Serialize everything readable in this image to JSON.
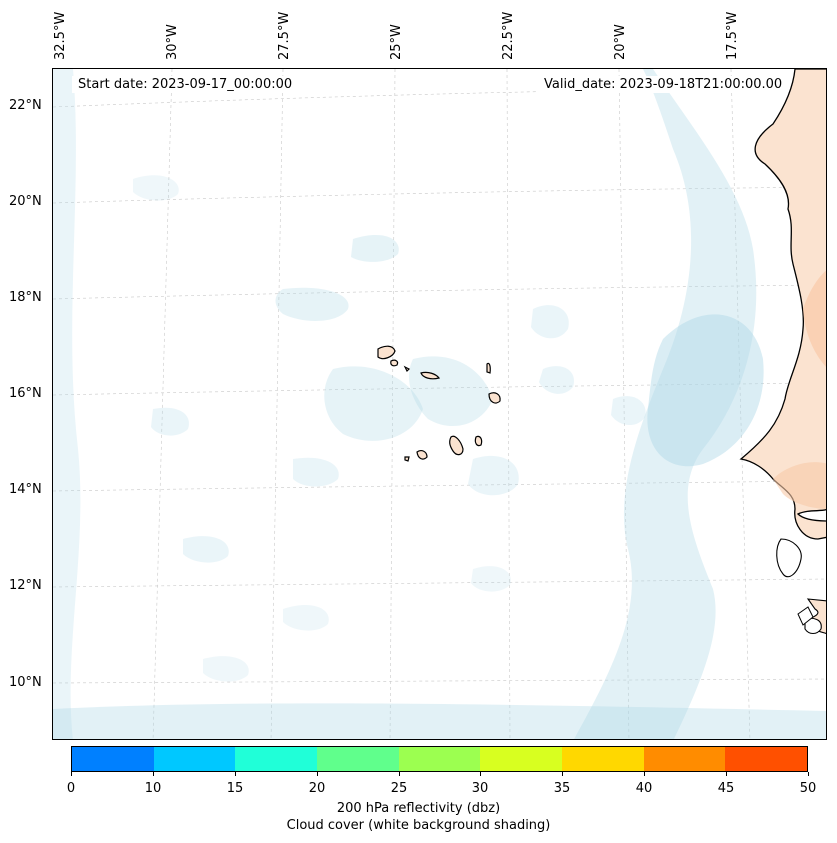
{
  "map": {
    "start_date": "Start date: 2023-09-17_00:00:00",
    "valid_date": "Valid_date: 2023-09-18T21:00:00.00",
    "lon_labels": [
      "32.5°W",
      "30°W",
      "27.5°W",
      "25°W",
      "22.5°W",
      "20°W",
      "17.5°W"
    ],
    "lat_labels": [
      "22°N",
      "20°N",
      "18°N",
      "16°N",
      "14°N",
      "12°N",
      "10°N"
    ],
    "cloud_color": "#add8e6",
    "land_color": "#f4a46a"
  },
  "colorbar": {
    "ticks": [
      "0",
      "10",
      "15",
      "20",
      "25",
      "30",
      "35",
      "40",
      "45",
      "50"
    ],
    "colors": [
      "#0080ff",
      "#00c8ff",
      "#20ffd8",
      "#60ff8c",
      "#9cff50",
      "#d8ff20",
      "#ffd800",
      "#ff8c00",
      "#ff5000"
    ],
    "label_line1": "200 hPa reflectivity (dbz)",
    "label_line2": "Cloud cover (white background shading)"
  }
}
